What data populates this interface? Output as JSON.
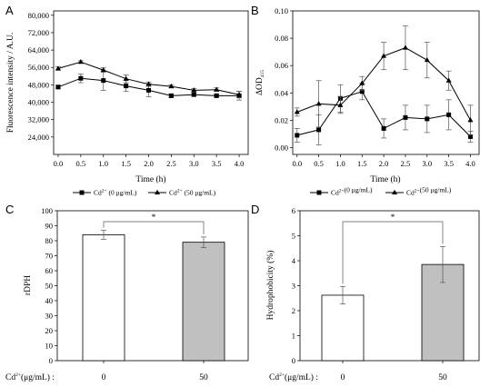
{
  "chart_data": [
    {
      "panel": "A",
      "type": "line",
      "xlabel": "Time (h)",
      "ylabel": "Fluorescence intensity / A.U.",
      "xlim": [
        -0.1,
        4.2
      ],
      "ylim": [
        16000,
        82000
      ],
      "xticks": [
        0.0,
        0.5,
        1.0,
        1.5,
        2.0,
        2.5,
        3.0,
        3.5,
        4.0
      ],
      "xtick_labels": [
        "0.0",
        "0.5",
        "1.0",
        "1.5",
        "2.0",
        "2.5",
        "3.0",
        "3.5",
        "4.0"
      ],
      "yticks": [
        24000,
        32000,
        40000,
        48000,
        56000,
        64000,
        72000,
        80000
      ],
      "ytick_labels": [
        "24,000",
        "32,000",
        "40,000",
        "48,000",
        "56,000",
        "64,000",
        "72,000",
        "80,000"
      ],
      "x": [
        0.0,
        0.5,
        1.0,
        1.5,
        2.0,
        2.5,
        3.0,
        3.5,
        4.0
      ],
      "series": [
        {
          "name": "Cd2+ (0 μg/mL)",
          "marker": "square",
          "values": [
            47000,
            51000,
            50000,
            47500,
            45500,
            43000,
            43500,
            43000,
            43000
          ],
          "errors": [
            800,
            2000,
            4500,
            2500,
            3000,
            800,
            800,
            600,
            2000
          ]
        },
        {
          "name": "Cd2+ (50 μg/mL)",
          "marker": "triangle",
          "values": [
            55500,
            58500,
            54800,
            50800,
            48300,
            47300,
            45500,
            45800,
            43500
          ],
          "errors": [
            800,
            600,
            1000,
            1800,
            1000,
            700,
            800,
            800,
            1500
          ]
        }
      ],
      "legend_placement": "bottom"
    },
    {
      "panel": "B",
      "type": "line",
      "xlabel": "Time (h)",
      "ylabel": "ΔOD",
      "ylabel_sub": "415",
      "xlim": [
        -0.1,
        4.2
      ],
      "ylim": [
        -0.005,
        0.1
      ],
      "xticks": [
        0.0,
        0.5,
        1.0,
        1.5,
        2.0,
        2.5,
        3.0,
        3.5,
        4.0
      ],
      "xtick_labels": [
        "0.0",
        "0.5",
        "1.0",
        "1.5",
        "2.0",
        "2.5",
        "3.0",
        "3.5",
        "4.0"
      ],
      "yticks": [
        0.0,
        0.02,
        0.04,
        0.06,
        0.08,
        0.1
      ],
      "ytick_labels": [
        "0.00",
        "0.02",
        "0.04",
        "0.06",
        "0.08",
        "0.10"
      ],
      "x": [
        0.0,
        0.5,
        1.0,
        1.5,
        2.0,
        2.5,
        3.0,
        3.5,
        4.0
      ],
      "series": [
        {
          "name": "Cd2+ (0 μg/mL)",
          "marker": "square",
          "values": [
            0.009,
            0.013,
            0.036,
            0.041,
            0.014,
            0.022,
            0.021,
            0.024,
            0.008
          ],
          "errors": [
            0.005,
            0.011,
            0.01,
            0.006,
            0.007,
            0.009,
            0.01,
            0.011,
            0.004
          ]
        },
        {
          "name": "Cd2+ (50 μg/mL)",
          "marker": "triangle",
          "values": [
            0.026,
            0.032,
            0.031,
            0.047,
            0.067,
            0.073,
            0.064,
            0.049,
            0.02
          ],
          "errors": [
            0.003,
            0.017,
            0.006,
            0.005,
            0.01,
            0.016,
            0.013,
            0.007,
            0.011
          ]
        }
      ],
      "legend_placement": "bottom"
    },
    {
      "panel": "C",
      "type": "bar",
      "ylabel": "rDPH",
      "categories": [
        "0",
        "50"
      ],
      "category_axis_label": "Cd2+(μg/mL) :",
      "values": [
        84,
        79
      ],
      "errors": [
        3,
        3.5
      ],
      "bar_colors": [
        "#ffffff",
        "#c0c0c0"
      ],
      "ylim": [
        0,
        100
      ],
      "yticks": [
        0,
        10,
        20,
        30,
        40,
        50,
        60,
        70,
        80,
        90,
        100
      ],
      "ytick_labels": [
        "0",
        "10",
        "20",
        "30",
        "40",
        "50",
        "60",
        "70",
        "80",
        "90",
        "100"
      ],
      "significance": "*"
    },
    {
      "panel": "D",
      "type": "bar",
      "ylabel": "Hydrophobicity (%)",
      "categories": [
        "0",
        "50"
      ],
      "category_axis_label": "Cd2+(μg/mL) :",
      "values": [
        2.62,
        3.85
      ],
      "errors": [
        0.35,
        0.72
      ],
      "bar_colors": [
        "#ffffff",
        "#c0c0c0"
      ],
      "ylim": [
        0,
        6
      ],
      "yticks": [
        0,
        1,
        2,
        3,
        4,
        5,
        6
      ],
      "ytick_labels": [
        "0",
        "1",
        "2",
        "3",
        "4",
        "5",
        "6"
      ],
      "significance": "*"
    }
  ],
  "legend": {
    "ion": "Cd",
    "charge": "2+",
    "label_0": "(0 μg/mL)",
    "label_50": "(50 μg/mL)"
  },
  "bar_axis": {
    "ion": "Cd",
    "charge": "2+",
    "unit": "(μg/mL) :"
  }
}
